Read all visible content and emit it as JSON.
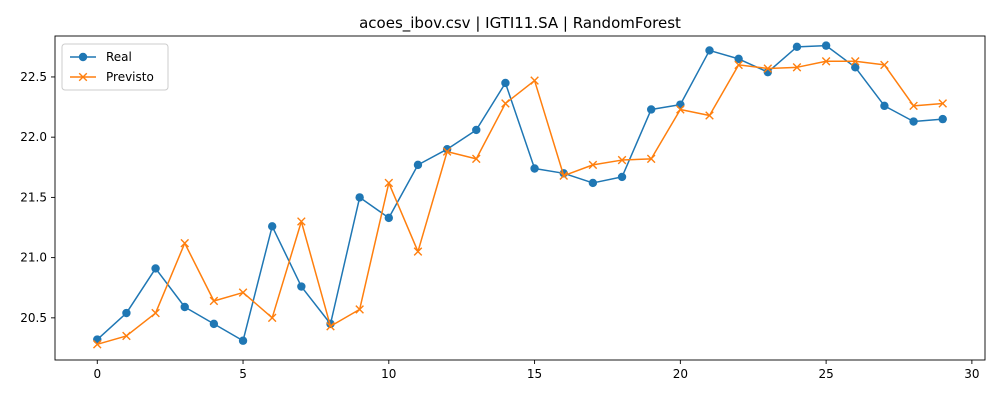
{
  "chart_data": {
    "type": "line",
    "title": "acoes_ibov.csv | IGTI11.SA | RandomForest",
    "xlabel": "",
    "ylabel": "",
    "x": [
      0,
      1,
      2,
      3,
      4,
      5,
      6,
      7,
      8,
      9,
      10,
      11,
      12,
      13,
      14,
      15,
      16,
      17,
      18,
      19,
      20,
      21,
      22,
      23,
      24,
      25,
      26,
      27,
      28,
      29
    ],
    "xlim": [
      -1.45,
      30.45
    ],
    "ylim": [
      20.15,
      22.84
    ],
    "x_ticks": [
      0,
      5,
      10,
      15,
      20,
      25,
      30
    ],
    "y_ticks": [
      20.5,
      21.0,
      21.5,
      22.0,
      22.5
    ],
    "grid": false,
    "legend_position": "top-left",
    "series": [
      {
        "name": "Real",
        "color": "#1f77b4",
        "marker": "circle",
        "values": [
          20.32,
          20.54,
          20.91,
          20.59,
          20.45,
          20.31,
          21.26,
          20.76,
          20.45,
          21.5,
          21.33,
          21.77,
          21.9,
          22.06,
          22.45,
          21.74,
          21.7,
          21.62,
          21.67,
          22.23,
          22.27,
          22.72,
          22.65,
          22.54,
          22.75,
          22.76,
          22.58,
          22.26,
          22.13,
          22.15
        ]
      },
      {
        "name": "Previsto",
        "color": "#ff7f0e",
        "marker": "x",
        "values": [
          20.28,
          20.35,
          20.54,
          21.12,
          20.64,
          20.71,
          20.5,
          21.3,
          20.43,
          20.57,
          21.62,
          21.05,
          21.88,
          21.82,
          22.28,
          22.47,
          21.68,
          21.77,
          21.81,
          21.82,
          22.23,
          22.18,
          22.6,
          22.57,
          22.58,
          22.63,
          22.63,
          22.6,
          22.26,
          22.28
        ]
      }
    ]
  }
}
